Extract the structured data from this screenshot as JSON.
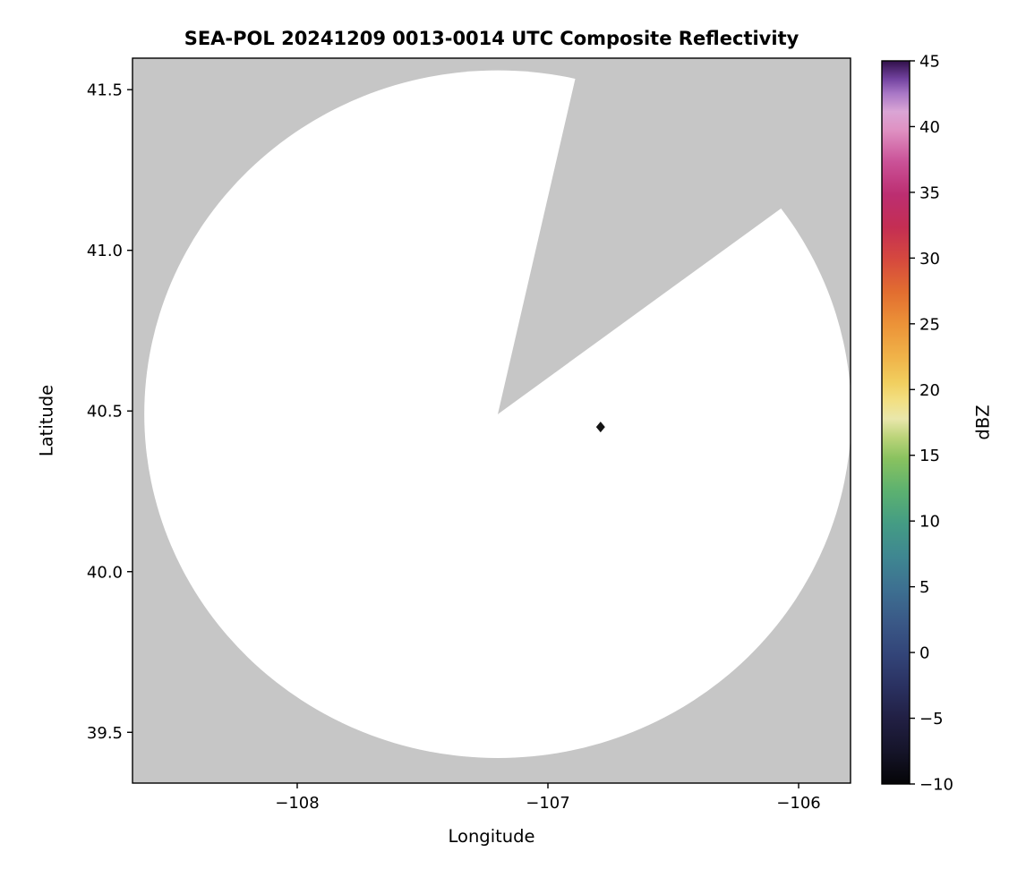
{
  "chart_data": {
    "type": "heatmap",
    "title": "SEA-POL 20241209 0013-0014 UTC Composite Reflectivity",
    "xlabel": "Longitude",
    "ylabel": "Latitude",
    "xlim": [
      -108.657,
      -105.793
    ],
    "ylim": [
      39.342,
      41.598
    ],
    "grid": false,
    "xticks": [
      {
        "value": -108,
        "label": "−108"
      },
      {
        "value": -107,
        "label": "−107"
      },
      {
        "value": -106,
        "label": "−106"
      }
    ],
    "yticks": [
      {
        "value": 41.5,
        "label": "41.5"
      },
      {
        "value": 41.0,
        "label": "41.0"
      },
      {
        "value": 40.5,
        "label": "40.5"
      },
      {
        "value": 40.0,
        "label": "40.0"
      },
      {
        "value": 39.5,
        "label": "39.5"
      }
    ],
    "no_coverage_color": "#c6c6c6",
    "coverage": {
      "fill": "#ffffff",
      "center_lon": -107.2,
      "center_lat": 40.49,
      "radius_lon_deg": 1.41,
      "radius_lat_deg": 1.07,
      "blocked_sector_azimuth_deg": [
        13,
        54
      ]
    },
    "echoes": [
      {
        "lon": -106.79,
        "lat": 40.45,
        "marker": "diamond",
        "color": "#141414"
      }
    ],
    "colorbar": {
      "label": "dBZ",
      "vmin": -10,
      "vmax": 45,
      "tick_values": [
        45,
        40,
        35,
        30,
        25,
        20,
        15,
        10,
        5,
        0,
        -5,
        -10
      ],
      "tick_labels": [
        "45",
        "40",
        "35",
        "30",
        "25",
        "20",
        "15",
        "10",
        "5",
        "0",
        "−5",
        "−10"
      ],
      "gradient_stops": [
        [
          0,
          "#050507"
        ],
        [
          4.5,
          "#151429"
        ],
        [
          9,
          "#211f43"
        ],
        [
          13.5,
          "#2a3161"
        ],
        [
          18,
          "#334579"
        ],
        [
          22.5,
          "#3a5987"
        ],
        [
          27,
          "#3d7091"
        ],
        [
          31.5,
          "#3f8791"
        ],
        [
          36,
          "#449c84"
        ],
        [
          40.5,
          "#5cb170"
        ],
        [
          45,
          "#89c25f"
        ],
        [
          48,
          "#bcd47a"
        ],
        [
          50.5,
          "#e9e7ab"
        ],
        [
          53,
          "#f2df83"
        ],
        [
          55.5,
          "#f1cf5f"
        ],
        [
          59,
          "#f0b349"
        ],
        [
          63.5,
          "#ec9338"
        ],
        [
          68,
          "#e26e30"
        ],
        [
          72.5,
          "#d6493e"
        ],
        [
          77,
          "#c42e53"
        ],
        [
          81.5,
          "#bc2e71"
        ],
        [
          86,
          "#ca5197"
        ],
        [
          90.5,
          "#df92c3"
        ],
        [
          93,
          "#daa5d5"
        ],
        [
          95.5,
          "#a877c6"
        ],
        [
          97.5,
          "#7343a0"
        ],
        [
          100,
          "#31114a"
        ]
      ]
    }
  }
}
